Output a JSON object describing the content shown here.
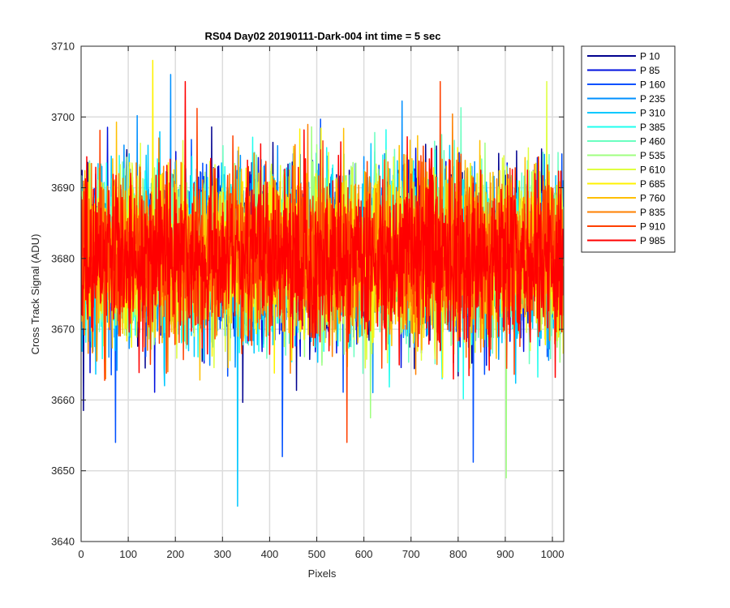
{
  "chart_data": {
    "type": "line",
    "title": "RS04 Day02 20190111-Dark-004 int time = 5 sec",
    "xlabel": "Pixels",
    "ylabel": "Cross Track Signal (ADU)",
    "xlim": [
      0,
      1024
    ],
    "ylim": [
      3640,
      3710
    ],
    "x_ticks": [
      "0",
      "100",
      "200",
      "300",
      "400",
      "500",
      "600",
      "700",
      "800",
      "900",
      "1000"
    ],
    "y_ticks": [
      "3640",
      "3650",
      "3660",
      "3670",
      "3680",
      "3690",
      "3700",
      "3710"
    ],
    "grid": true,
    "legend_position": "outside-top-right",
    "noise_profile": {
      "x_count": 1024,
      "mean": 3680.5,
      "typical_half_range": 12,
      "min": 3645,
      "max": 3708
    },
    "series": [
      {
        "name": "P 10",
        "color": "#00008F"
      },
      {
        "name": "P 85",
        "color": "#0010DF"
      },
      {
        "name": "P 160",
        "color": "#0050FF"
      },
      {
        "name": "P 235",
        "color": "#0090FF"
      },
      {
        "name": "P 310",
        "color": "#00C8FF"
      },
      {
        "name": "P 385",
        "color": "#1FFFEF"
      },
      {
        "name": "P 460",
        "color": "#6BFFC0"
      },
      {
        "name": "P 535",
        "color": "#9FFF80"
      },
      {
        "name": "P 610",
        "color": "#DFFF40"
      },
      {
        "name": "P 685",
        "color": "#FFF200"
      },
      {
        "name": "P 760",
        "color": "#FFBF00"
      },
      {
        "name": "P 835",
        "color": "#FF8000"
      },
      {
        "name": "P 910",
        "color": "#FF4000"
      },
      {
        "name": "P 985",
        "color": "#FF0000"
      }
    ],
    "notable_excursions": [
      {
        "series": "P 310",
        "x": 332,
        "y": 3645
      },
      {
        "series": "P 535",
        "x": 902,
        "y": 3649
      },
      {
        "series": "P 685",
        "x": 152,
        "y": 3708
      },
      {
        "series": "P 160",
        "x": 73,
        "y": 3654
      },
      {
        "series": "P 160",
        "x": 427,
        "y": 3652
      },
      {
        "series": "P 910",
        "x": 564,
        "y": 3654
      },
      {
        "series": "P 235",
        "x": 190,
        "y": 3706
      },
      {
        "series": "P 985",
        "x": 221,
        "y": 3705
      },
      {
        "series": "P 910",
        "x": 762,
        "y": 3705
      },
      {
        "series": "P 610",
        "x": 988,
        "y": 3705
      }
    ]
  }
}
